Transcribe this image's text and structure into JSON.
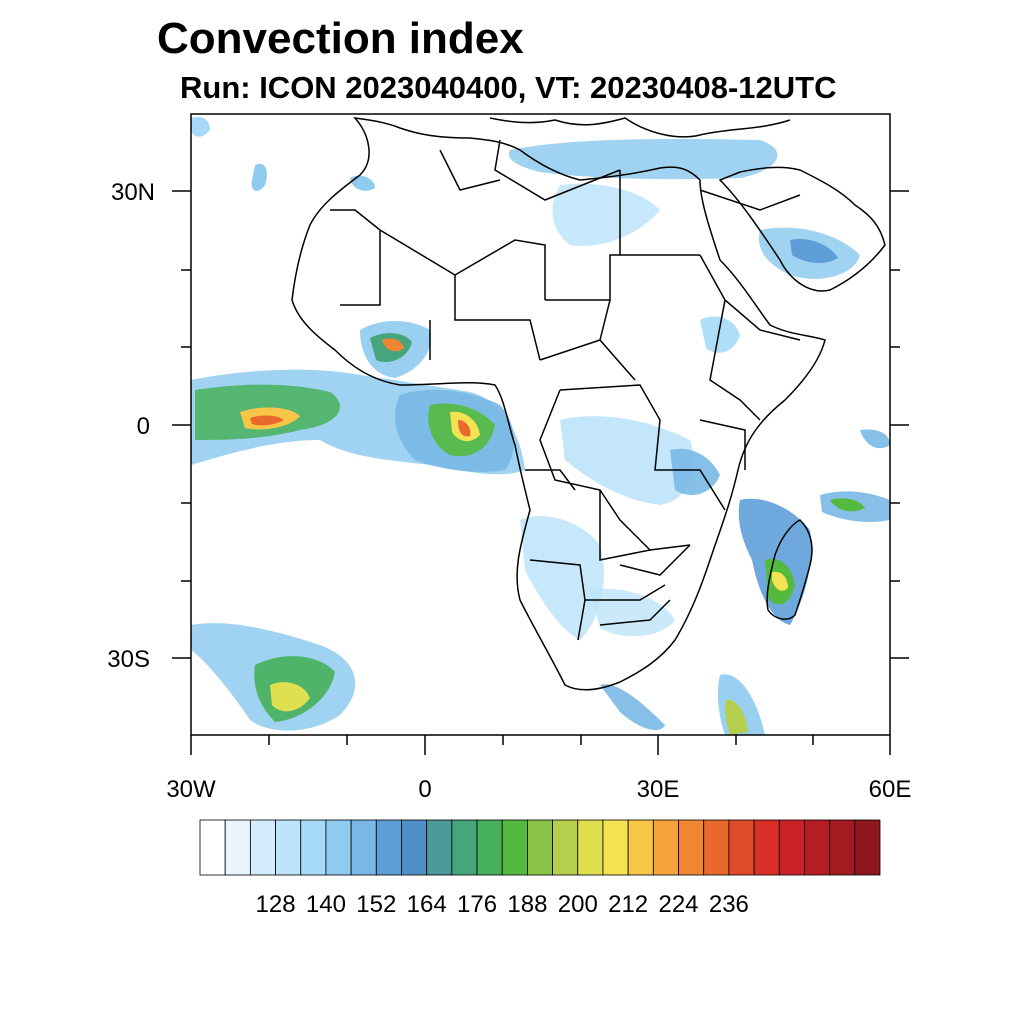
{
  "title": "Convection index",
  "subtitle": "Run: ICON 2023040400,  VT: 20230408-12UTC",
  "map": {
    "region": "Africa",
    "lon_range": [
      -30,
      60
    ],
    "lat_range": [
      -40,
      40
    ],
    "lat_ticks": [
      {
        "value": 30,
        "label": "30N"
      },
      {
        "value": 0,
        "label": "0"
      },
      {
        "value": -30,
        "label": "30S"
      }
    ],
    "lon_ticks": [
      {
        "value": -30,
        "label": "30W"
      },
      {
        "value": 0,
        "label": "0"
      },
      {
        "value": 30,
        "label": "30E"
      },
      {
        "value": 60,
        "label": "60E"
      }
    ],
    "colors": {
      "coastline": "#000000",
      "frame": "#000000",
      "background": "#ffffff"
    }
  },
  "colorbar": {
    "colors": [
      "#ffffff",
      "#e8f5fd",
      "#d2ecfb",
      "#bde3f9",
      "#a6daf8",
      "#8ecbef",
      "#79b8e6",
      "#5e9ed8",
      "#4f8fc8",
      "#4a9a9a",
      "#46a57c",
      "#46b05a",
      "#54ba3e",
      "#8bc346",
      "#b5cf4c",
      "#dfe04f",
      "#f3e251",
      "#f8c646",
      "#f7a23a",
      "#f08532",
      "#e9682c",
      "#df4a29",
      "#d83027",
      "#ca2226",
      "#b81d24",
      "#a31a21",
      "#8e161c"
    ],
    "labels": [
      "128",
      "140",
      "152",
      "164",
      "176",
      "188",
      "200",
      "212",
      "224",
      "236"
    ]
  }
}
